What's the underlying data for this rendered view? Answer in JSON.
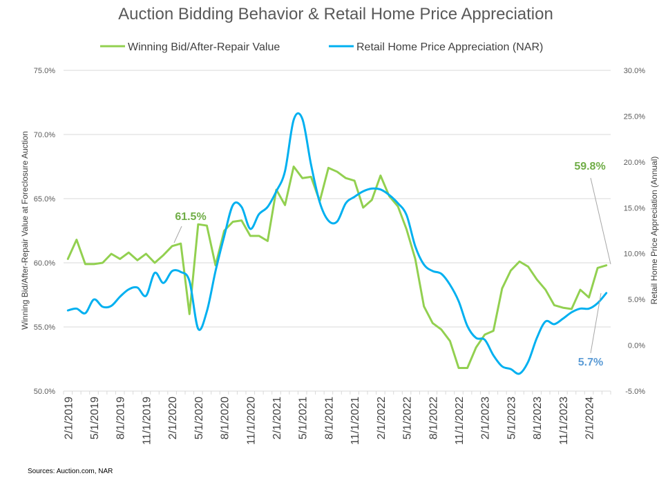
{
  "chart_data": {
    "type": "line",
    "title": "Auction Bidding Behavior & Retail Home Price Appreciation",
    "ylabel_left": "Winning Bid/After-Repair Value at Foreclosure Auction",
    "ylabel_right": "Retail Home Price Appreciation (Annual)",
    "ylim_left": [
      50,
      75
    ],
    "ylim_right": [
      -5,
      30
    ],
    "yticks_left": [
      "50.0%",
      "55.0%",
      "60.0%",
      "65.0%",
      "70.0%",
      "75.0%"
    ],
    "yticks_right": [
      "-5.0%",
      "0.0%",
      "5.0%",
      "10.0%",
      "15.0%",
      "20.0%",
      "25.0%",
      "30.0%"
    ],
    "x_tick_labels": [
      "2/1/2019",
      "5/1/2019",
      "8/1/2019",
      "11/1/2019",
      "2/1/2020",
      "5/1/2020",
      "8/1/2020",
      "11/1/2020",
      "2/1/2021",
      "5/1/2021",
      "8/1/2021",
      "11/1/2021",
      "2/1/2022",
      "5/1/2022",
      "8/1/2022",
      "11/1/2022",
      "2/1/2023",
      "5/1/2023",
      "8/1/2023",
      "11/1/2023",
      "2/1/2024"
    ],
    "x_start": "2019-02",
    "months": 63,
    "grid": true,
    "legend_position": "top",
    "series": [
      {
        "name": "Winning Bid/After-Repair Value",
        "color": "#92d050",
        "axis": "left",
        "smooth": false,
        "values": [
          60.3,
          61.8,
          59.9,
          59.9,
          60.0,
          60.7,
          60.3,
          60.8,
          60.2,
          60.7,
          60.0,
          60.6,
          61.3,
          61.5,
          56.0,
          63.0,
          62.9,
          59.8,
          62.5,
          63.2,
          63.3,
          62.1,
          62.1,
          61.7,
          65.7,
          64.5,
          67.5,
          66.6,
          66.7,
          64.8,
          67.4,
          67.1,
          66.6,
          66.4,
          64.3,
          64.9,
          66.8,
          65.2,
          64.4,
          62.6,
          60.3,
          56.6,
          55.3,
          54.8,
          53.9,
          51.8,
          51.8,
          53.4,
          54.4,
          54.7,
          58.0,
          59.4,
          60.1,
          59.7,
          58.7,
          57.9,
          56.7,
          56.5,
          56.4,
          57.9,
          57.3,
          59.6,
          59.8
        ]
      },
      {
        "name": "Retail Home Price Appreciation (NAR)",
        "color": "#00b0f0",
        "axis": "right",
        "smooth": true,
        "values": [
          3.8,
          4.0,
          3.5,
          5.0,
          4.2,
          4.3,
          5.3,
          6.1,
          6.3,
          5.4,
          7.9,
          6.8,
          8.1,
          8.0,
          7.0,
          1.8,
          3.7,
          8.1,
          11.9,
          15.3,
          15.1,
          12.7,
          14.3,
          15.1,
          16.8,
          19.0,
          24.6,
          24.7,
          19.7,
          15.6,
          13.6,
          13.5,
          15.5,
          16.2,
          16.8,
          17.1,
          17.0,
          16.4,
          15.5,
          14.2,
          10.8,
          8.8,
          8.1,
          7.8,
          6.6,
          4.8,
          2.1,
          0.8,
          0.6,
          -1.1,
          -2.3,
          -2.6,
          -3.1,
          -1.8,
          0.8,
          2.6,
          2.3,
          2.9,
          3.6,
          4.0,
          4.0,
          4.6,
          5.7
        ]
      }
    ]
  },
  "legend": {
    "items": [
      {
        "label": "Winning Bid/After-Repair Value",
        "color": "#92d050"
      },
      {
        "label": "Retail Home Price Appreciation (NAR)",
        "color": "#00b0f0"
      }
    ]
  },
  "annotations": {
    "green_2020": {
      "text": "61.5%",
      "color": "#70ad47"
    },
    "green_2024": {
      "text": "59.8%",
      "color": "#70ad47"
    },
    "blue_2024": {
      "text": "5.7%",
      "color": "#5b9bd5"
    }
  },
  "source": "Sources: Auction.com, NAR"
}
